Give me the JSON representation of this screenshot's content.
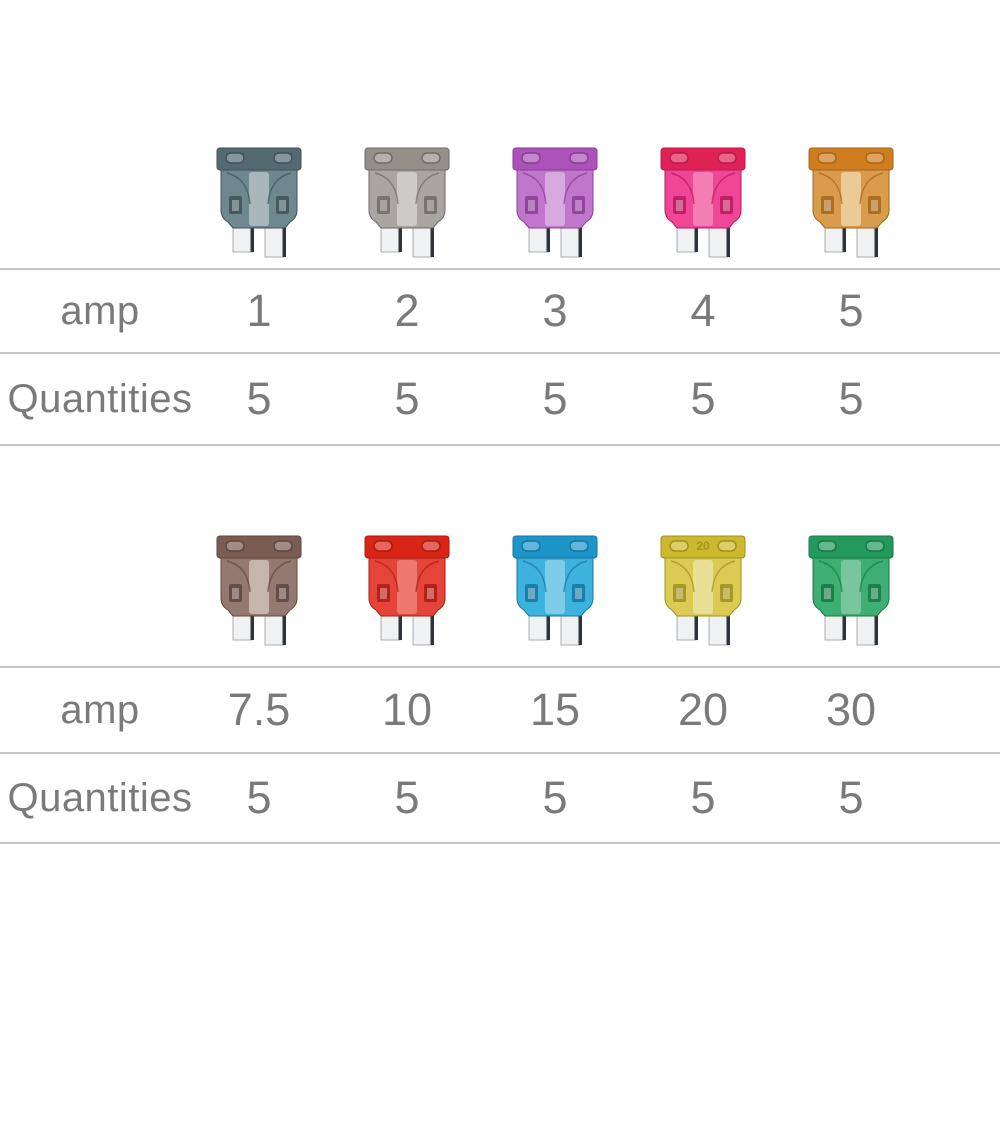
{
  "labels": {
    "amp": "amp",
    "quantities": "Quantities"
  },
  "styles": {
    "background": "#ffffff",
    "line_color": "#c6c6c6",
    "text_color": "#7a7a7a",
    "prong_fill": "#eff1f2",
    "prong_stroke": "#a8adb2",
    "prong_edge": "#2f343a"
  },
  "groups": [
    {
      "fuses": [
        {
          "color_name": "dark-teal",
          "amp": "1",
          "quantity": "5",
          "body_color": "#6e888d",
          "top_color": "#536b70",
          "shade_color": "#3c5257",
          "center_tint": "rgba(255,255,255,0.40)",
          "top_label": ""
        },
        {
          "color_name": "gray",
          "amp": "2",
          "quantity": "5",
          "body_color": "#a9a5a1",
          "top_color": "#949089",
          "shade_color": "#6e6a66",
          "center_tint": "rgba(255,255,255,0.42)",
          "top_label": ""
        },
        {
          "color_name": "violet",
          "amp": "3",
          "quantity": "5",
          "body_color": "#bf76cb",
          "top_color": "#ab53b9",
          "shade_color": "#8a3c98",
          "center_tint": "rgba(255,255,255,0.38)",
          "top_label": ""
        },
        {
          "color_name": "pink",
          "amp": "4",
          "quantity": "5",
          "body_color": "#ef4697",
          "top_color": "#e02153",
          "shade_color": "#b81a57",
          "center_tint": "rgba(255,255,255,0.30)",
          "top_label": ""
        },
        {
          "color_name": "orange",
          "amp": "5",
          "quantity": "5",
          "body_color": "#d99c4d",
          "top_color": "#cf7d1f",
          "shade_color": "#a3661a",
          "center_tint": "rgba(250,240,212,0.55)",
          "top_label": ""
        }
      ]
    },
    {
      "fuses": [
        {
          "color_name": "brown",
          "amp": "7.5",
          "quantity": "5",
          "body_color": "#93796f",
          "top_color": "#7a5c52",
          "shade_color": "#5d463e",
          "center_tint": "rgba(250,242,232,0.50)",
          "top_label": ""
        },
        {
          "color_name": "red",
          "amp": "10",
          "quantity": "5",
          "body_color": "#e5443a",
          "top_color": "#d92418",
          "shade_color": "#ac1b10",
          "center_tint": "rgba(255,255,255,0.28)",
          "top_label": ""
        },
        {
          "color_name": "blue",
          "amp": "15",
          "quantity": "5",
          "body_color": "#3db2dc",
          "top_color": "#1e95c8",
          "shade_color": "#16759f",
          "center_tint": "rgba(255,255,255,0.34)",
          "top_label": ""
        },
        {
          "color_name": "yellow",
          "amp": "20",
          "quantity": "5",
          "body_color": "#dbcb52",
          "top_color": "#cdb92e",
          "shade_color": "#9e9020",
          "center_tint": "rgba(255,255,255,0.40)",
          "top_label": "20"
        },
        {
          "color_name": "green",
          "amp": "30",
          "quantity": "5",
          "body_color": "#3fae73",
          "top_color": "#23995c",
          "shade_color": "#197743",
          "center_tint": "rgba(255,255,255,0.30)",
          "top_label": ""
        }
      ]
    }
  ],
  "chart_data": {
    "type": "table",
    "tables": [
      {
        "row_labels": [
          "amp",
          "Quantities"
        ],
        "rows": [
          [
            "1",
            "2",
            "3",
            "4",
            "5"
          ],
          [
            "5",
            "5",
            "5",
            "5",
            "5"
          ]
        ]
      },
      {
        "row_labels": [
          "amp",
          "Quantities"
        ],
        "rows": [
          [
            "7.5",
            "10",
            "15",
            "20",
            "30"
          ],
          [
            "5",
            "5",
            "5",
            "5",
            "5"
          ]
        ]
      }
    ]
  }
}
